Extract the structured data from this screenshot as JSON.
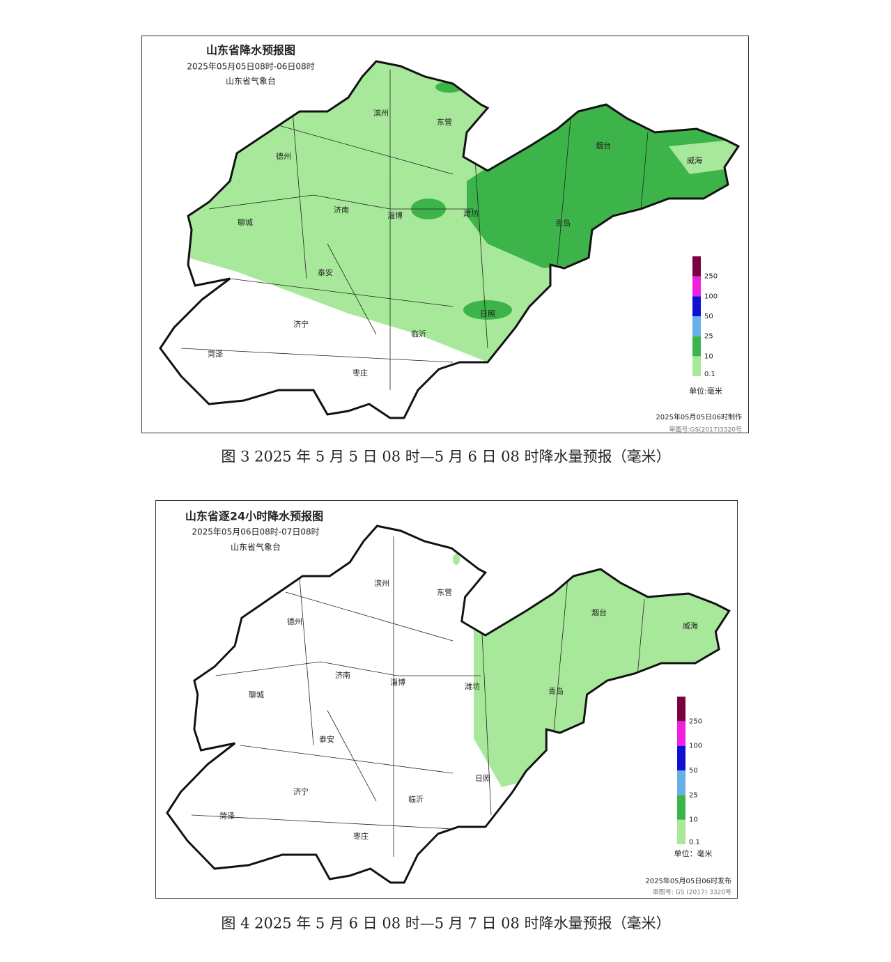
{
  "maps": [
    {
      "title": "山东省降水预报图",
      "subtitle": "2025年05月05日08时-06日08时",
      "issuer": "山东省气象台",
      "cities": [
        "滨州",
        "东营",
        "德州",
        "济南",
        "淄博",
        "潍坊",
        "烟台",
        "威海",
        "青岛",
        "聊城",
        "泰安",
        "日照",
        "济宁",
        "临沂",
        "菏泽",
        "枣庄"
      ],
      "legend": {
        "labels": [
          "0.1",
          "10",
          "25",
          "50",
          "100",
          "250"
        ],
        "unit": "单位:毫米"
      },
      "footer": "2025年05月05日06时制作",
      "audit": "审图号:GS(2017)3320号",
      "caption": "图 3 2025 年 5 月 5 日 08 时—5 月 6 日 08 时降水量预报（毫米）"
    },
    {
      "title": "山东省逐24小时降水预报图",
      "subtitle": "2025年05月06日08时-07日08时",
      "issuer": "山东省气象台",
      "cities": [
        "滨州",
        "东营",
        "德州",
        "济南",
        "淄博",
        "潍坊",
        "烟台",
        "威海",
        "青岛",
        "聊城",
        "泰安",
        "日照",
        "济宁",
        "临沂",
        "菏泽",
        "枣庄"
      ],
      "legend": {
        "labels": [
          "0.1",
          "10",
          "25",
          "50",
          "100",
          "250"
        ],
        "unit": "单位：毫米"
      },
      "footer": "2025年05月05日06时发布",
      "audit": "审图号: GS (2017) 3320号",
      "caption": "图 4 2025 年 5 月 6 日 08 时—5 月 7 日 08 时降水量预报（毫米）"
    }
  ]
}
